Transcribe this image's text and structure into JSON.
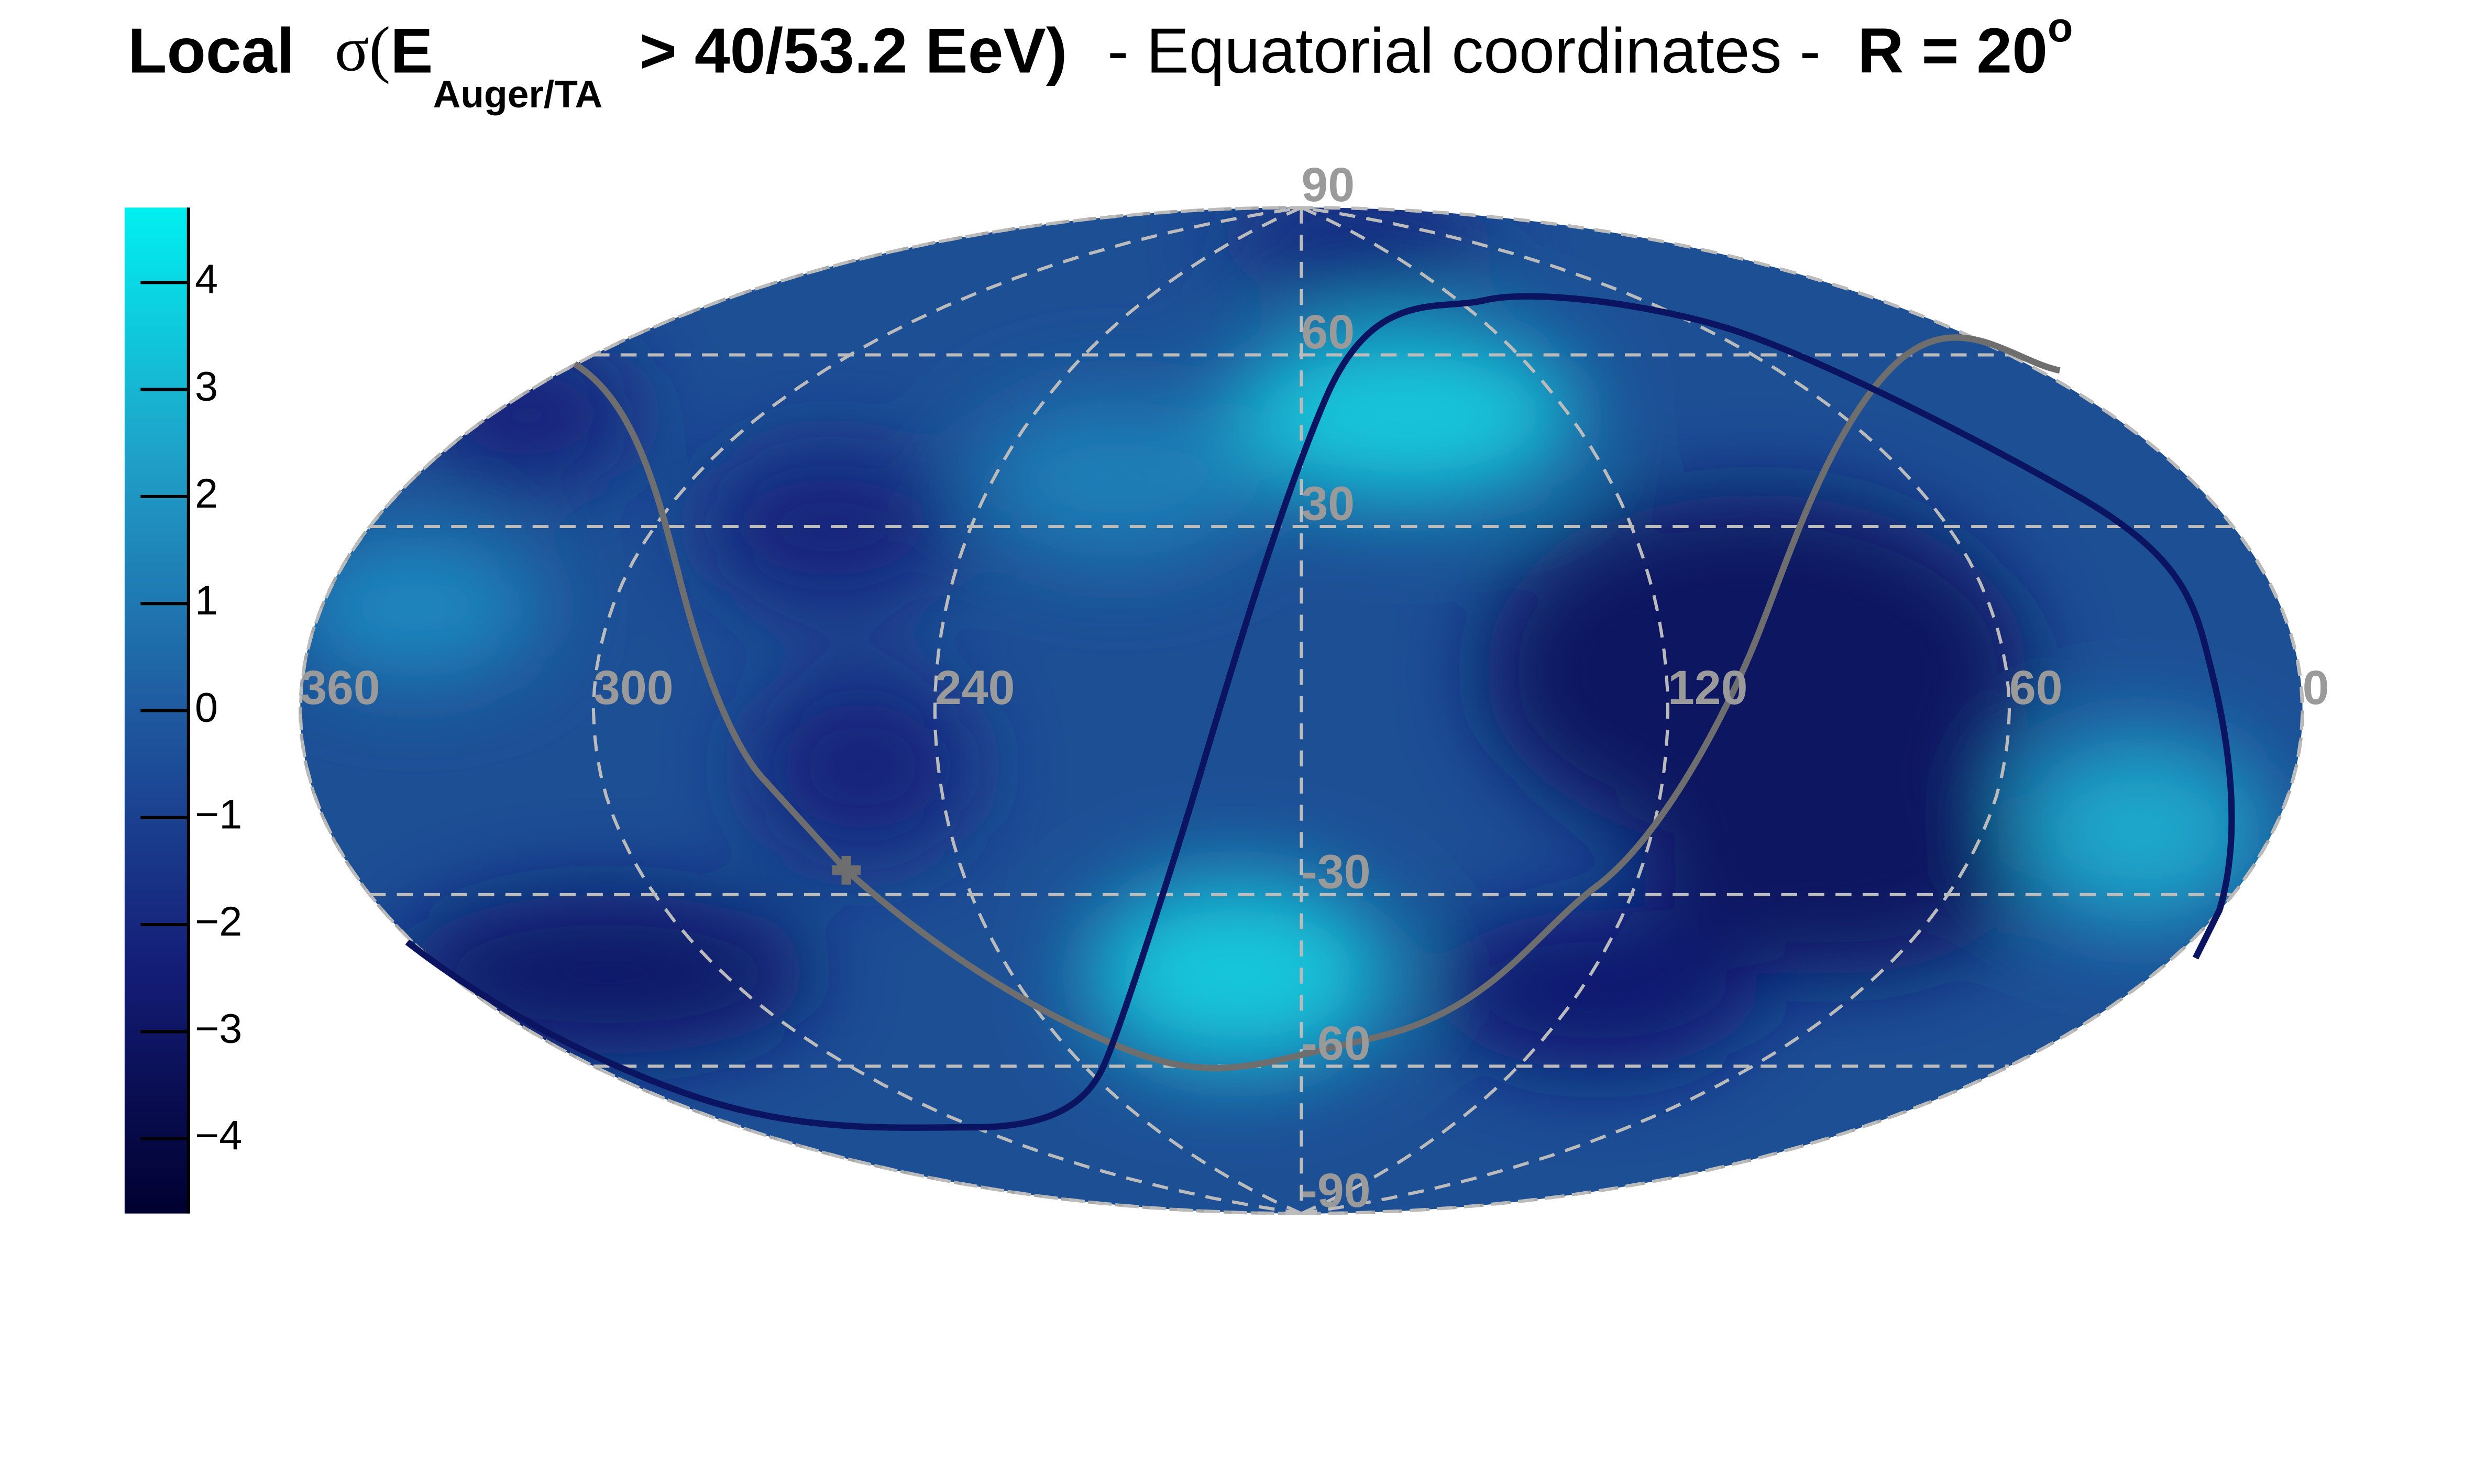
{
  "chart_data": {
    "type": "skymap",
    "title": {
      "bold_prefix": "Local",
      "sigma": "σ(",
      "energy": "E",
      "subscript": "Auger/TA",
      "threshold": "> 40/53.2 EeV)",
      "plain": "- Equatorial coordinates -",
      "radius": "R = 20",
      "superscript": "o"
    },
    "xlim": [
      360,
      0
    ],
    "ylim": [
      -90,
      90
    ],
    "xticks": [
      360,
      300,
      240,
      120,
      60,
      0
    ],
    "yticks": [
      90,
      60,
      30,
      -30,
      -60,
      -90
    ],
    "colorbar": {
      "zlim": [
        -4.7,
        4.7
      ],
      "zticks": [
        4,
        3,
        2,
        1,
        0,
        {
          "value": -1,
          "label": "−1"
        },
        {
          "value": -2,
          "label": "−2"
        },
        {
          "value": -3,
          "label": "−3"
        },
        {
          "value": -4,
          "label": "−4"
        }
      ]
    }
  }
}
